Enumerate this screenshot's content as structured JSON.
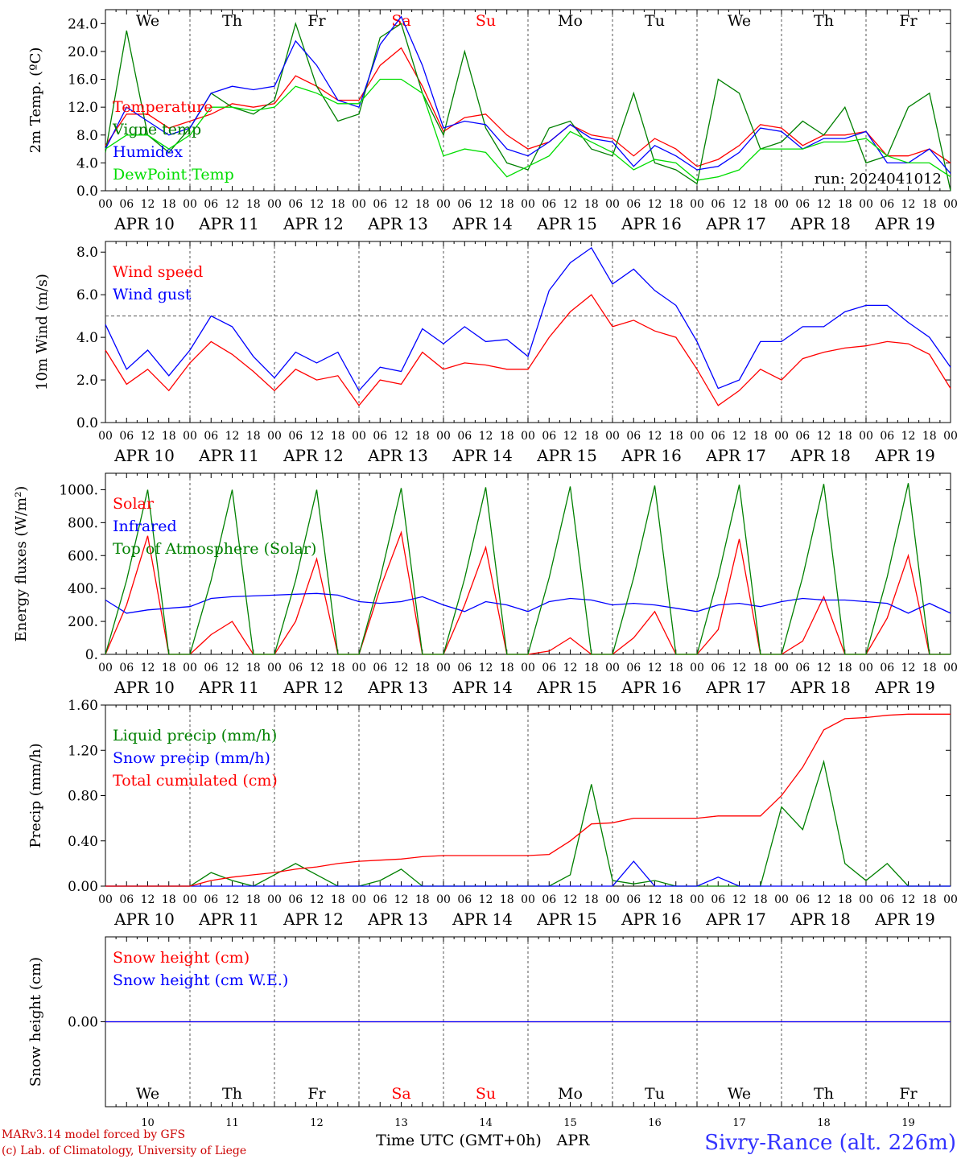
{
  "colors": {
    "temperature": "#ff0000",
    "vigne": "#008000",
    "humidex": "#0000ff",
    "dewpoint": "#00dd00",
    "wind_speed": "#ff0000",
    "wind_gust": "#0000ff",
    "solar": "#ff0000",
    "infrared": "#0000ff",
    "toa": "#008000",
    "liquid": "#008000",
    "snow_precip": "#0000ff",
    "total_cum": "#ff0000",
    "snow_height": "#ff0000",
    "snow_we": "#0000ff",
    "weekend": "#ff0000",
    "credits": "#cc0000",
    "station": "#3333ff"
  },
  "days": [
    {
      "abbr": "We",
      "date": "APR 10",
      "num": "10",
      "weekend": false
    },
    {
      "abbr": "Th",
      "date": "APR 11",
      "num": "11",
      "weekend": false
    },
    {
      "abbr": "Fr",
      "date": "APR 12",
      "num": "12",
      "weekend": false
    },
    {
      "abbr": "Sa",
      "date": "APR 13",
      "num": "13",
      "weekend": true
    },
    {
      "abbr": "Su",
      "date": "APR 14",
      "num": "14",
      "weekend": true
    },
    {
      "abbr": "Mo",
      "date": "APR 15",
      "num": "15",
      "weekend": false
    },
    {
      "abbr": "Tu",
      "date": "APR 16",
      "num": "16",
      "weekend": false
    },
    {
      "abbr": "We",
      "date": "APR 17",
      "num": "17",
      "weekend": false
    },
    {
      "abbr": "Th",
      "date": "APR 18",
      "num": "18",
      "weekend": false
    },
    {
      "abbr": "Fr",
      "date": "APR 19",
      "num": "19",
      "weekend": false
    }
  ],
  "hour_ticks": [
    "00",
    "06",
    "12",
    "18"
  ],
  "chart_data": [
    {
      "type": "line",
      "ylabel": "2m Temp. (ºC)",
      "ylim": [
        0,
        26
      ],
      "yticks": [
        0,
        4,
        8,
        12,
        16,
        20,
        24
      ],
      "ytick_labels": [
        "0.0",
        "4.0",
        "8.0",
        "12.0",
        "16.0",
        "20.0",
        "24.0"
      ],
      "annotation": "run: 2024041012",
      "x_unit": "hours since APR 10 00 UTC",
      "x": [
        0,
        6,
        12,
        18,
        24,
        30,
        36,
        42,
        48,
        54,
        60,
        66,
        72,
        78,
        84,
        90,
        96,
        102,
        108,
        114,
        120,
        126,
        132,
        138,
        144,
        150,
        156,
        162,
        168,
        174,
        180,
        186,
        192,
        198,
        204,
        210,
        216,
        222,
        228,
        234,
        240
      ],
      "series": [
        {
          "name": "Temperature",
          "color_key": "temperature",
          "values": [
            6.5,
            11,
            11,
            9,
            10,
            11,
            12.5,
            12,
            12.5,
            16.5,
            15,
            13,
            13,
            18,
            20.5,
            15,
            8.5,
            10.5,
            11,
            8,
            6,
            7,
            9.5,
            8,
            7.5,
            5,
            7.5,
            6,
            3.5,
            4.5,
            6.5,
            9.5,
            9,
            6.5,
            8,
            8,
            8.5,
            5,
            5,
            6,
            4
          ]
        },
        {
          "name": "Vigne temp",
          "color_key": "vigne",
          "values": [
            5.5,
            23,
            8,
            5.5,
            9,
            14,
            12,
            11,
            13,
            24,
            15,
            10,
            11,
            22,
            24,
            14,
            8,
            20,
            9,
            4,
            3,
            9,
            10,
            6,
            5,
            14,
            4,
            3,
            1,
            16,
            14,
            6,
            7,
            10,
            8,
            12,
            4,
            5,
            12,
            14,
            0
          ]
        },
        {
          "name": "Humidex",
          "color_key": "humidex",
          "values": [
            6,
            12,
            10,
            8,
            9,
            14,
            15,
            14.5,
            15,
            21.5,
            18,
            13,
            12,
            21,
            25,
            18,
            9,
            10,
            9.5,
            6,
            5,
            7,
            9.5,
            7.5,
            7,
            3.5,
            6.5,
            5,
            3,
            3.5,
            5.5,
            9,
            8.5,
            6,
            7.5,
            7.5,
            8.5,
            4,
            4,
            6,
            2.5
          ]
        },
        {
          "name": "DewPoint Temp",
          "color_key": "dewpoint",
          "values": [
            6,
            8,
            8,
            6,
            8,
            12,
            12,
            11.5,
            12,
            15,
            14,
            12.5,
            12.5,
            16,
            16,
            14,
            5,
            6,
            5.5,
            2,
            3.5,
            5,
            8.5,
            7,
            5.5,
            3,
            4.5,
            4,
            1.5,
            2,
            3,
            6,
            6,
            6,
            7,
            7,
            7.5,
            5,
            4,
            4,
            2
          ]
        }
      ]
    },
    {
      "type": "line",
      "ylabel": "10m Wind (m/s)",
      "ylim": [
        0,
        8.5
      ],
      "yticks": [
        0,
        2,
        4,
        6,
        8
      ],
      "ytick_labels": [
        "0.0",
        "2.0",
        "4.0",
        "6.0",
        "8.0"
      ],
      "ref_line": 5,
      "x": [
        0,
        6,
        12,
        18,
        24,
        30,
        36,
        42,
        48,
        54,
        60,
        66,
        72,
        78,
        84,
        90,
        96,
        102,
        108,
        114,
        120,
        126,
        132,
        138,
        144,
        150,
        156,
        162,
        168,
        174,
        180,
        186,
        192,
        198,
        204,
        210,
        216,
        222,
        228,
        234,
        240
      ],
      "series": [
        {
          "name": "Wind speed",
          "color_key": "wind_speed",
          "values": [
            3.4,
            1.8,
            2.5,
            1.5,
            2.8,
            3.8,
            3.2,
            2.4,
            1.5,
            2.5,
            2.0,
            2.2,
            0.8,
            2.0,
            1.8,
            3.3,
            2.5,
            2.8,
            2.7,
            2.5,
            2.5,
            4.0,
            5.2,
            6.0,
            4.5,
            4.8,
            4.3,
            4.0,
            2.5,
            0.8,
            1.5,
            2.5,
            2.0,
            3.0,
            3.3,
            3.5,
            3.6,
            3.8,
            3.7,
            3.2,
            1.6
          ]
        },
        {
          "name": "Wind gust",
          "color_key": "wind_gust",
          "values": [
            4.6,
            2.5,
            3.4,
            2.2,
            3.4,
            5.0,
            4.5,
            3.1,
            2.1,
            3.3,
            2.8,
            3.3,
            1.5,
            2.6,
            2.4,
            4.4,
            3.7,
            4.5,
            3.8,
            3.9,
            3.1,
            6.2,
            7.5,
            8.2,
            6.5,
            7.2,
            6.2,
            5.5,
            3.8,
            1.6,
            2.0,
            3.8,
            3.8,
            4.5,
            4.5,
            5.2,
            5.5,
            5.5,
            4.7,
            4.0,
            2.6
          ]
        }
      ]
    },
    {
      "type": "line",
      "ylabel": "Energy fluxes (W/m²)",
      "ylim": [
        0,
        1100
      ],
      "yticks": [
        0,
        200,
        400,
        600,
        800,
        1000
      ],
      "ytick_labels": [
        "0.",
        "200.",
        "400.",
        "600.",
        "800.",
        "1000."
      ],
      "x": [
        0,
        6,
        12,
        18,
        24,
        30,
        36,
        42,
        48,
        54,
        60,
        66,
        72,
        78,
        84,
        90,
        96,
        102,
        108,
        114,
        120,
        126,
        132,
        138,
        144,
        150,
        156,
        162,
        168,
        174,
        180,
        186,
        192,
        198,
        204,
        210,
        216,
        222,
        228,
        234,
        240
      ],
      "series": [
        {
          "name": "Solar",
          "color_key": "solar",
          "values": [
            0,
            300,
            720,
            0,
            0,
            120,
            200,
            0,
            0,
            200,
            580,
            0,
            0,
            400,
            740,
            0,
            0,
            300,
            650,
            0,
            0,
            20,
            100,
            0,
            0,
            100,
            260,
            0,
            0,
            150,
            700,
            0,
            0,
            80,
            350,
            0,
            0,
            220,
            600,
            0,
            0
          ]
        },
        {
          "name": "Infrared",
          "color_key": "infrared",
          "values": [
            330,
            250,
            270,
            280,
            290,
            340,
            350,
            355,
            360,
            365,
            370,
            360,
            320,
            310,
            320,
            350,
            300,
            260,
            320,
            300,
            260,
            320,
            340,
            330,
            300,
            310,
            300,
            280,
            260,
            300,
            310,
            290,
            320,
            340,
            330,
            330,
            320,
            310,
            250,
            310,
            250
          ]
        },
        {
          "name": "Top of Atmosphere (Solar)",
          "color_key": "toa",
          "values": [
            0,
            450,
            1000,
            0,
            0,
            450,
            1000,
            0,
            0,
            450,
            1000,
            0,
            0,
            460,
            1010,
            0,
            0,
            460,
            1015,
            0,
            0,
            465,
            1020,
            0,
            0,
            465,
            1025,
            0,
            0,
            470,
            1030,
            0,
            0,
            470,
            1035,
            0,
            0,
            470,
            1040,
            0,
            0
          ]
        }
      ]
    },
    {
      "type": "line",
      "ylabel": "Precip (mm/h)",
      "ylim": [
        0,
        1.6
      ],
      "yticks": [
        0,
        0.4,
        0.8,
        1.2,
        1.6
      ],
      "ytick_labels": [
        "0.00",
        "0.40",
        "0.80",
        "1.20",
        "1.60"
      ],
      "x": [
        0,
        6,
        12,
        18,
        24,
        30,
        36,
        42,
        48,
        54,
        60,
        66,
        72,
        78,
        84,
        90,
        96,
        102,
        108,
        114,
        120,
        126,
        132,
        138,
        144,
        150,
        156,
        162,
        168,
        174,
        180,
        186,
        192,
        198,
        204,
        210,
        216,
        222,
        228,
        234,
        240
      ],
      "series": [
        {
          "name": "Liquid precip (mm/h)",
          "color_key": "liquid",
          "values": [
            0,
            0,
            0,
            0,
            0,
            0.12,
            0.05,
            0,
            0.1,
            0.2,
            0.1,
            0,
            0,
            0.05,
            0.15,
            0,
            0,
            0,
            0,
            0,
            0,
            0,
            0.1,
            0.9,
            0.05,
            0.02,
            0.05,
            0,
            0,
            0,
            0,
            0,
            0.7,
            0.5,
            1.1,
            0.2,
            0.05,
            0.2,
            0,
            0,
            0
          ]
        },
        {
          "name": "Snow precip (mm/h)",
          "color_key": "snow_precip",
          "values": [
            0,
            0,
            0,
            0,
            0,
            0,
            0,
            0,
            0,
            0,
            0,
            0,
            0,
            0,
            0,
            0,
            0,
            0,
            0,
            0,
            0,
            0,
            0,
            0,
            0,
            0.22,
            0,
            0,
            0,
            0.08,
            0,
            0,
            0,
            0,
            0,
            0,
            0,
            0,
            0,
            0,
            0
          ]
        },
        {
          "name": "Total cumulated (cm)",
          "color_key": "total_cum",
          "values": [
            0,
            0,
            0,
            0,
            0,
            0.05,
            0.08,
            0.1,
            0.12,
            0.15,
            0.17,
            0.2,
            0.22,
            0.23,
            0.24,
            0.26,
            0.27,
            0.27,
            0.27,
            0.27,
            0.27,
            0.28,
            0.4,
            0.55,
            0.56,
            0.6,
            0.6,
            0.6,
            0.6,
            0.62,
            0.62,
            0.62,
            0.8,
            1.05,
            1.38,
            1.48,
            1.49,
            1.51,
            1.52,
            1.52,
            1.52
          ]
        }
      ]
    },
    {
      "type": "line",
      "ylabel": "Snow height (cm)",
      "ylim": [
        -1,
        1
      ],
      "yticks": [
        0
      ],
      "ytick_labels": [
        "0.00"
      ],
      "x": [
        0,
        240
      ],
      "series": [
        {
          "name": "Snow height (cm)",
          "color_key": "snow_height",
          "values": [
            0,
            0
          ]
        },
        {
          "name": "Snow height (cm W.E.)",
          "color_key": "snow_we",
          "values": [
            0,
            0
          ]
        }
      ]
    }
  ],
  "footer": {
    "xlabel": "Time UTC (GMT+0h)",
    "month": "APR",
    "credit_line1": "MARv3.14 model forced by GFS",
    "credit_line2": "(c) Lab. of Climatology, University of Liege",
    "station": "Sivry-Rance (alt. 226m)"
  }
}
